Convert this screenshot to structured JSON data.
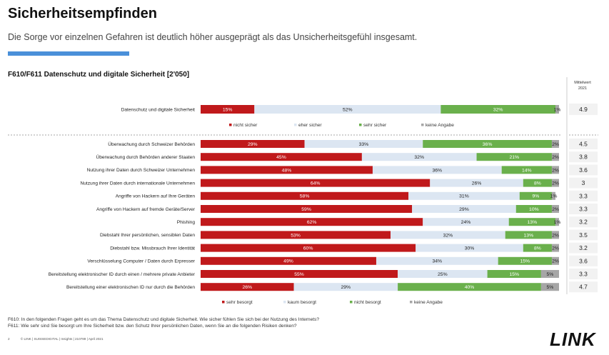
{
  "header": {
    "title": "Sicherheitsempfinden",
    "subtitle": "Die Sorge vor einzelnen Gefahren ist deutlich höher ausgeprägt als das Unsicherheitsgefühl insgesamt.",
    "section_title": "F610/F611 Datenschutz und digitale Sicherheit [2'050]",
    "mean_header_line1": "Mittelwert",
    "mean_header_line2": "2021"
  },
  "colors": {
    "red": "#c0191b",
    "light": "#dce6f2",
    "green": "#6ab04c",
    "gray": "#a6a6a6",
    "accent": "#4a90d9"
  },
  "chart_data": [
    {
      "type": "bar",
      "orientation": "horizontal-stacked-100",
      "categories": [
        "Datenschutz und digitale Sicherheit"
      ],
      "series": [
        {
          "name": "nicht sicher",
          "values": [
            15
          ]
        },
        {
          "name": "eher sicher",
          "values": [
            52
          ]
        },
        {
          "name": "sehr sicher",
          "values": [
            32
          ]
        },
        {
          "name": "keine Angabe",
          "values": [
            1
          ]
        }
      ],
      "mean": [
        4.9
      ],
      "legend_position": "below"
    },
    {
      "type": "bar",
      "orientation": "horizontal-stacked-100",
      "categories": [
        "Überwachung durch Schweizer Behörden",
        "Überwachung durch Behörden anderer Staaten",
        "Nutzung ihrer Daten durch Schweizer Unternehmen",
        "Nutzung ihrer Daten durch internationale Unternehmen",
        "Angriffe von Hackern auf Ihre Geräten",
        "Angriffe von Hackern auf fremde Geräte/Server",
        "Phishing",
        "Diebstahl Ihrer persönlichen, sensiblen Daten",
        "Diebstahl bzw. Missbrauch Ihrer Identität",
        "Verschlüsselung Computer / Daten durch Erpresser",
        "Bereitstellung elektronischer ID durch einen / mehrere private Anbieter",
        "Bereitstellung einer elektronischen ID nur durch die Behörden"
      ],
      "series": [
        {
          "name": "sehr besorgt",
          "values": [
            29,
            45,
            48,
            64,
            58,
            59,
            62,
            53,
            60,
            49,
            55,
            26
          ]
        },
        {
          "name": "kaum besorgt",
          "values": [
            33,
            32,
            36,
            26,
            31,
            29,
            24,
            32,
            30,
            34,
            25,
            29
          ]
        },
        {
          "name": "nicht besorgt",
          "values": [
            36,
            21,
            14,
            8,
            9,
            10,
            13,
            13,
            8,
            15,
            15,
            40
          ]
        },
        {
          "name": "keine Angabe",
          "values": [
            2,
            2,
            2,
            2,
            1,
            2,
            1,
            2,
            2,
            2,
            5,
            5
          ]
        }
      ],
      "mean": [
        4.5,
        3.8,
        3.6,
        3.0,
        3.3,
        3.3,
        3.2,
        3.5,
        3.2,
        3.6,
        3.3,
        4.7
      ],
      "legend_position": "below"
    }
  ],
  "footer": {
    "note1": "F610: In den folgenden Fragen geht es um das Thema Datenschutz und digitale Sicherheit. Wie sicher fühlen Sie sich bei der Nutzung des Internets?",
    "note2": "F611: Wie sehr sind Sie besorgt um Ihre Sicherheit bzw. den Schutz Ihrer persönlichen Daten, wenn Sie an die folgenden Risiken denken?",
    "page": "2",
    "meta": "© LINK | SUISSEDIGITAL | Insights | 210789 | April 2021",
    "logo": "LINK"
  }
}
